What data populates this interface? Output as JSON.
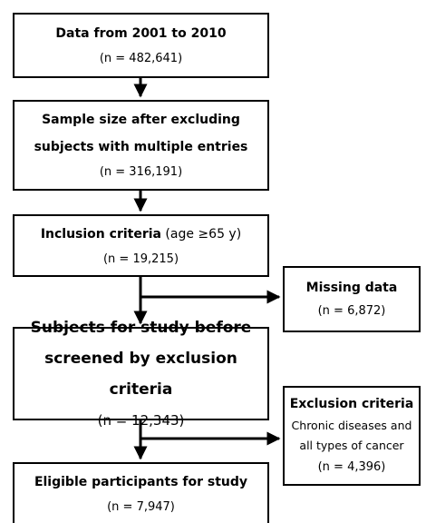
{
  "boxes": {
    "data_range": {
      "title": "Data from 2001 to 2010",
      "count": "(n = 482,641)"
    },
    "sample_size": {
      "title_line1": "Sample size after excluding",
      "title_line2": "subjects with multiple entries",
      "count": "(n = 316,191)"
    },
    "inclusion": {
      "title": "Inclusion criteria",
      "detail": " (age ≥65 y)",
      "count": "(n = 19,215)"
    },
    "missing": {
      "title": "Missing data",
      "count": "(n = 6,872)"
    },
    "subjects": {
      "title_line1": "Subjects for study before",
      "title_line2": "screened by exclusion criteria",
      "count": "(n = 12,343)"
    },
    "exclusion": {
      "title": "Exclusion criteria",
      "detail_line1": "Chronic diseases and",
      "detail_line2": "all types of cancer",
      "count": "(n = 4,396)"
    },
    "eligible": {
      "title": "Eligible participants for study",
      "count": "(n = 7,947)"
    }
  }
}
